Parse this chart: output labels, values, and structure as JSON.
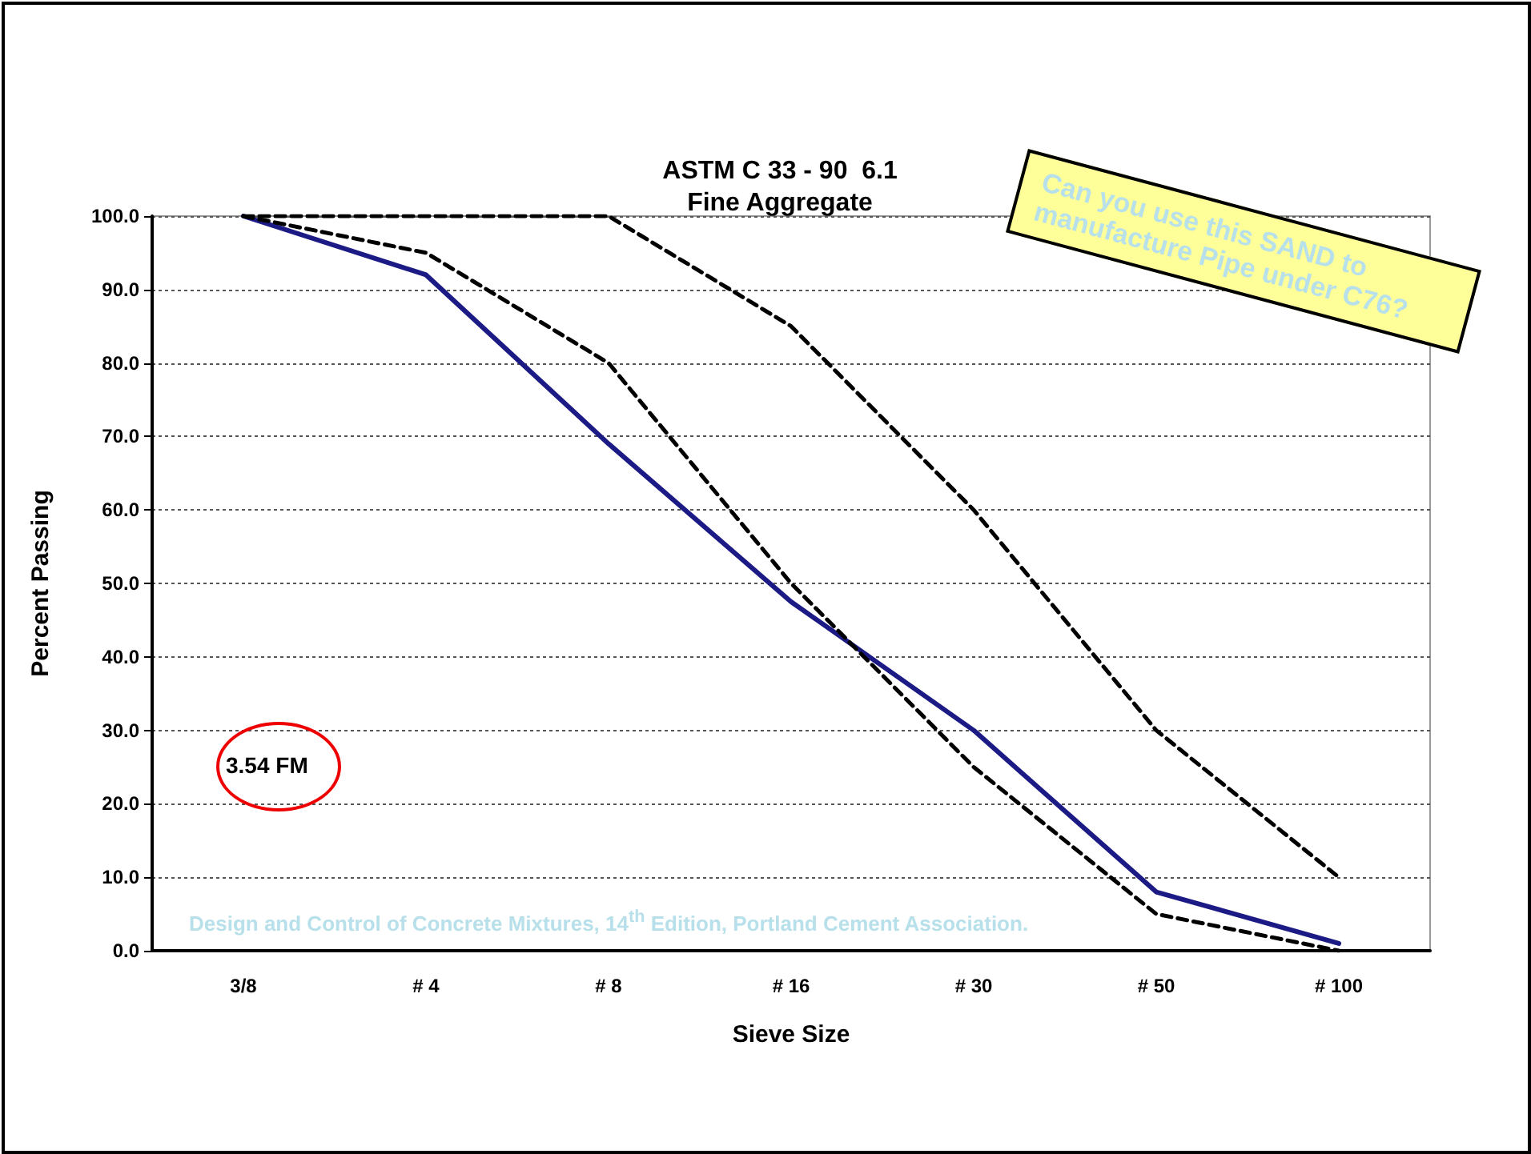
{
  "chart_data": {
    "type": "line",
    "title": "ASTM C 33 - 90  6.1",
    "subtitle": "Fine Aggregate",
    "xlabel": "Sieve Size",
    "ylabel": "Percent Passing",
    "categories": [
      "3/8",
      "# 4",
      "# 8",
      "# 16",
      "# 30",
      "# 50",
      "# 100"
    ],
    "series": [
      {
        "color": "#1c1a85",
        "line_style": "solid",
        "values": [
          100,
          92,
          69,
          47.5,
          30,
          8,
          1
        ]
      },
      {
        "color": "#000000",
        "line_style": "dashed",
        "values": [
          100,
          95,
          80,
          50,
          25,
          5,
          0
        ]
      },
      {
        "color": "#000000",
        "line_style": "dashed",
        "values": [
          100,
          100,
          100,
          85,
          60,
          30,
          10
        ]
      }
    ],
    "ylim": [
      0,
      100
    ],
    "yticks": [
      {
        "value": 0,
        "label": "0.0"
      },
      {
        "value": 10,
        "label": "10.0"
      },
      {
        "value": 20,
        "label": "20.0"
      },
      {
        "value": 30,
        "label": "30.0"
      },
      {
        "value": 40,
        "label": "40.0"
      },
      {
        "value": 50,
        "label": "50.0"
      },
      {
        "value": 60,
        "label": "60.0"
      },
      {
        "value": 70,
        "label": "70.0"
      },
      {
        "value": 80,
        "label": "80.0"
      },
      {
        "value": 90,
        "label": "90.0"
      },
      {
        "value": 100,
        "label": "100.0"
      }
    ],
    "grid": "y",
    "marker": "none",
    "annotations": [
      "3.54 FM",
      "Can you use this SAND to manufacture Pipe under C76?",
      "Design and Control of Concrete Mixtures, 14$^{th}$ Edition, Portland Cement Association."
    ]
  }
}
